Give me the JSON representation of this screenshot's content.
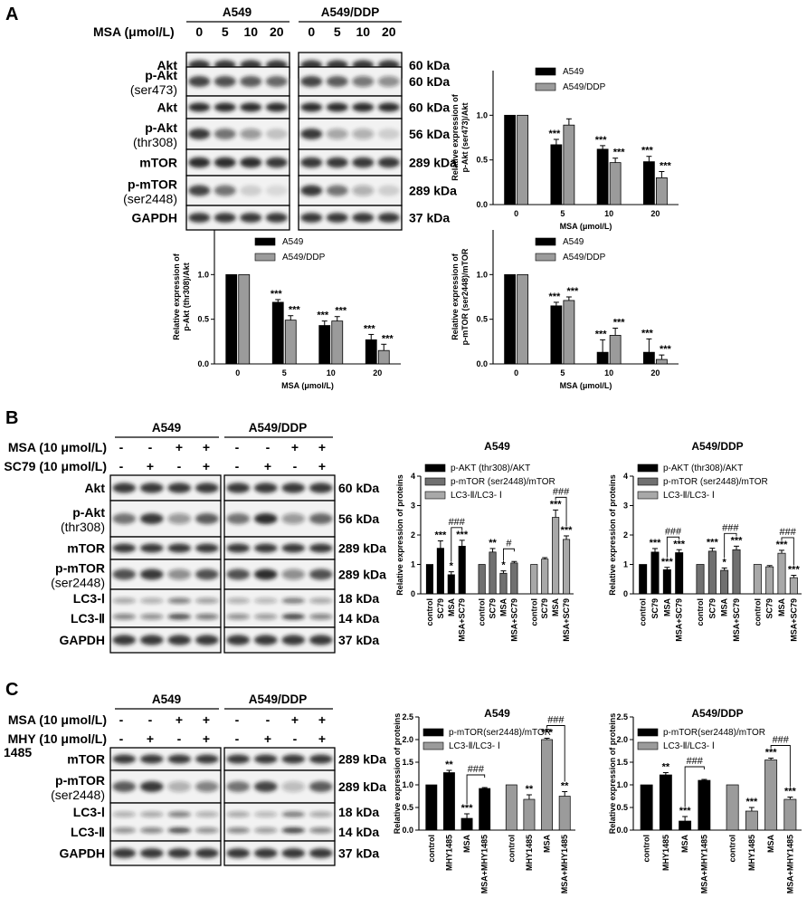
{
  "panelA": {
    "letter": "A",
    "groups": [
      "A549",
      "A549/DDP"
    ],
    "dose_label": "MSA (μmol/L)",
    "doses": [
      "0",
      "5",
      "10",
      "20"
    ],
    "rows": [
      {
        "label": [
          "Akt"
        ],
        "kda": "60 kDa",
        "y1": 58,
        "y2": 86,
        "bands": [
          [
            0.85,
            0.85,
            0.85,
            0.85
          ],
          [
            0.85,
            0.85,
            0.85,
            0.85
          ]
        ]
      },
      {
        "label": [
          "p-Akt",
          "(ser473)"
        ],
        "kda": "60 kDa",
        "y1": 74,
        "y2": 106,
        "bands": [
          [
            0.8,
            0.75,
            0.7,
            0.65
          ],
          [
            0.8,
            0.7,
            0.55,
            0.45
          ]
        ]
      },
      {
        "label": [
          "Akt"
        ],
        "kda": "60 kDa",
        "y1": 106,
        "y2": 131,
        "bands": [
          [
            0.9,
            0.9,
            0.9,
            0.9
          ],
          [
            0.9,
            0.9,
            0.9,
            0.9
          ]
        ]
      },
      {
        "label": [
          "p-Akt",
          "(thr308)"
        ],
        "kda": "56 kDa",
        "y1": 131,
        "y2": 165,
        "bands": [
          [
            0.85,
            0.6,
            0.4,
            0.2
          ],
          [
            0.85,
            0.35,
            0.3,
            0.15
          ]
        ]
      },
      {
        "label": [
          "mTOR"
        ],
        "kda": "289 kDa",
        "y1": 165,
        "y2": 194,
        "bands": [
          [
            0.9,
            0.9,
            0.9,
            0.85
          ],
          [
            0.85,
            0.85,
            0.85,
            0.85
          ]
        ]
      },
      {
        "label": [
          "p-mTOR",
          "(ser2448)"
        ],
        "kda": "289 kDa",
        "y1": 194,
        "y2": 227,
        "bands": [
          [
            0.8,
            0.6,
            0.15,
            0.1
          ],
          [
            0.85,
            0.6,
            0.3,
            0.15
          ]
        ]
      },
      {
        "label": [
          "GAPDH"
        ],
        "kda": "37 kDa",
        "y1": 227,
        "y2": 254,
        "bands": [
          [
            0.85,
            0.85,
            0.85,
            0.85
          ],
          [
            0.85,
            0.85,
            0.85,
            0.85
          ]
        ]
      }
    ]
  },
  "panelB": {
    "letter": "B",
    "groups": [
      "A549",
      "A549/DDP"
    ],
    "treat_rows": [
      {
        "label": "MSA (10 μmol/L)",
        "signs": [
          "-",
          "-",
          "+",
          "+",
          "-",
          "-",
          "+",
          "+"
        ]
      },
      {
        "label": "SC79 (10 μmol/L)",
        "signs": [
          "-",
          "+",
          "-",
          "+",
          "-",
          "+",
          "-",
          "+"
        ]
      }
    ],
    "rows": [
      {
        "label": [
          "Akt"
        ],
        "kda": [
          "60 kDa"
        ],
        "y1": 525,
        "y2": 553,
        "bands": [
          [
            0.85,
            0.85,
            0.85,
            0.85
          ],
          [
            0.85,
            0.85,
            0.85,
            0.85
          ]
        ]
      },
      {
        "label": [
          "p-Akt",
          "(thr308)"
        ],
        "kda": [
          "56 kDa"
        ],
        "y1": 553,
        "y2": 593,
        "bands": [
          [
            0.6,
            0.85,
            0.4,
            0.7
          ],
          [
            0.6,
            0.9,
            0.4,
            0.65
          ]
        ]
      },
      {
        "label": [
          "mTOR"
        ],
        "kda": [
          "289 kDa"
        ],
        "y1": 593,
        "y2": 618,
        "bands": [
          [
            0.85,
            0.85,
            0.85,
            0.85
          ],
          [
            0.85,
            0.85,
            0.85,
            0.85
          ]
        ]
      },
      {
        "label": [
          "p-mTOR",
          "(ser2448)"
        ],
        "kda": [
          "289 kDa"
        ],
        "y1": 618,
        "y2": 651,
        "bands": [
          [
            0.75,
            0.85,
            0.45,
            0.75
          ],
          [
            0.75,
            0.9,
            0.45,
            0.75
          ]
        ]
      },
      {
        "label": [
          "LC3-Ⅰ",
          "LC3-Ⅱ"
        ],
        "kda": [
          "18 kDa",
          "14 kDa"
        ],
        "y1": 651,
        "y2": 693,
        "bands": [
          [
            0.5,
            0.45,
            0.75,
            0.55
          ],
          [
            0.45,
            0.4,
            0.8,
            0.5
          ]
        ]
      },
      {
        "label": [
          "GAPDH"
        ],
        "kda": [
          "37 kDa"
        ],
        "y1": 693,
        "y2": 721,
        "bands": [
          [
            0.85,
            0.85,
            0.85,
            0.85
          ],
          [
            0.85,
            0.85,
            0.85,
            0.85
          ]
        ]
      }
    ]
  },
  "panelC": {
    "letter": "C",
    "groups": [
      "A549",
      "A549/DDP"
    ],
    "treat_rows": [
      {
        "label": "MSA (10 μmol/L)",
        "signs": [
          "-",
          "-",
          "+",
          "+",
          "-",
          "-",
          "+",
          "+"
        ]
      },
      {
        "label": "MHY (10 μmol/L)",
        "signs": [
          "-",
          "+",
          "-",
          "+",
          "-",
          "+",
          "-",
          "+"
        ]
      }
    ],
    "extra_label": "1485",
    "rows": [
      {
        "label": [
          "mTOR"
        ],
        "kda": [
          "289 kDa"
        ],
        "y1": 826,
        "y2": 851,
        "bands": [
          [
            0.85,
            0.85,
            0.85,
            0.85
          ],
          [
            0.85,
            0.85,
            0.85,
            0.85
          ]
        ]
      },
      {
        "label": [
          "p-mTOR",
          "(ser2448)"
        ],
        "kda": [
          "289 kDa"
        ],
        "y1": 851,
        "y2": 887,
        "bands": [
          [
            0.7,
            0.85,
            0.3,
            0.5
          ],
          [
            0.6,
            0.8,
            0.25,
            0.7
          ]
        ]
      },
      {
        "label": [
          "LC3-Ⅰ",
          "LC3-Ⅱ"
        ],
        "kda": [
          "18 kDa",
          "14 kDa"
        ],
        "y1": 887,
        "y2": 929,
        "bands": [
          [
            0.45,
            0.5,
            0.75,
            0.45
          ],
          [
            0.5,
            0.4,
            0.8,
            0.5
          ]
        ]
      },
      {
        "label": [
          "GAPDH"
        ],
        "kda": [
          "37 kDa"
        ],
        "y1": 929,
        "y2": 956,
        "bands": [
          [
            0.85,
            0.85,
            0.85,
            0.85
          ],
          [
            0.85,
            0.85,
            0.85,
            0.85
          ]
        ]
      }
    ]
  },
  "chart_data": [
    {
      "id": "a1",
      "type": "bar",
      "categories": [
        "0",
        "5",
        "10",
        "20"
      ],
      "series": [
        {
          "name": "A549",
          "values": [
            1.0,
            0.67,
            0.62,
            0.48
          ],
          "errors": [
            0,
            0.06,
            0.04,
            0.06
          ],
          "stars": [
            "",
            "***",
            "***",
            "***"
          ]
        },
        {
          "name": "A549/DDP",
          "values": [
            1.0,
            0.89,
            0.47,
            0.3
          ],
          "errors": [
            0,
            0.07,
            0.05,
            0.07
          ],
          "stars": [
            "",
            "",
            "***",
            "***"
          ]
        }
      ],
      "ylabel": [
        "Relative expression of",
        "p-Akt (ser473)/Akt"
      ],
      "xlabel": "MSA (μmol/L)",
      "yticks": [
        "0.0",
        "0.5",
        "1.0"
      ],
      "ylim": [
        0,
        1.5
      ],
      "colors": [
        "#000000",
        "#9b9b9b"
      ],
      "legend": "top"
    },
    {
      "id": "a2",
      "type": "bar",
      "categories": [
        "0",
        "5",
        "10",
        "20"
      ],
      "series": [
        {
          "name": "A549",
          "values": [
            1.0,
            0.69,
            0.43,
            0.27
          ],
          "errors": [
            0,
            0.03,
            0.05,
            0.06
          ],
          "stars": [
            "",
            "***",
            "***",
            "***"
          ]
        },
        {
          "name": "A549/DDP",
          "values": [
            1.0,
            0.49,
            0.48,
            0.15
          ],
          "errors": [
            0,
            0.05,
            0.05,
            0.07
          ],
          "stars": [
            "",
            "***",
            "***",
            "***"
          ]
        }
      ],
      "ylabel": [
        "Relative expression of",
        "p-Akt (thr308)/Akt"
      ],
      "xlabel": "MSA (μmol/L)",
      "yticks": [
        "0.0",
        "0.5",
        "1.0"
      ],
      "ylim": [
        0,
        1.5
      ],
      "colors": [
        "#000000",
        "#9b9b9b"
      ],
      "legend": "top"
    },
    {
      "id": "a3",
      "type": "bar",
      "categories": [
        "0",
        "5",
        "10",
        "20"
      ],
      "series": [
        {
          "name": "A549",
          "values": [
            1.0,
            0.65,
            0.13,
            0.13
          ],
          "errors": [
            0,
            0.04,
            0.14,
            0.15
          ],
          "stars": [
            "",
            "***",
            "***",
            "***"
          ]
        },
        {
          "name": "A549/DDP",
          "values": [
            1.0,
            0.71,
            0.32,
            0.05
          ],
          "errors": [
            0,
            0.04,
            0.08,
            0.05
          ],
          "stars": [
            "",
            "***",
            "***",
            "***"
          ]
        }
      ],
      "ylabel": [
        "Relative expression of",
        "p-mTOR (ser2448)/mTOR"
      ],
      "xlabel": "MSA (μmol/L)",
      "yticks": [
        "0.0",
        "0.5",
        "1.0"
      ],
      "ylim": [
        0,
        1.5
      ],
      "colors": [
        "#000000",
        "#9b9b9b"
      ],
      "legend": "top"
    },
    {
      "id": "b1",
      "type": "bar",
      "title": "A549",
      "categories": [
        "control",
        "SC79",
        "MSA",
        "MSA+SC79"
      ],
      "groups": [
        {
          "name": "p-AKT (thr308)/AKT",
          "color": "#000000",
          "values": [
            1.0,
            1.55,
            0.65,
            1.62
          ],
          "errors": [
            0,
            0.25,
            0.1,
            0.2
          ],
          "stars": [
            "",
            "***",
            "*",
            "***"
          ],
          "bracket": "###"
        },
        {
          "name": "p-mTOR (ser2448)/mTOR",
          "color": "#707070",
          "values": [
            1.0,
            1.42,
            0.7,
            1.05
          ],
          "errors": [
            0,
            0.12,
            0.08,
            0.05
          ],
          "stars": [
            "",
            "**",
            "*",
            ""
          ],
          "bracket": "#"
        },
        {
          "name": "LC3-Ⅱ/LC3- Ⅰ",
          "color": "#a8a8a8",
          "values": [
            1.0,
            1.18,
            2.6,
            1.85
          ],
          "errors": [
            0,
            0.05,
            0.25,
            0.12
          ],
          "stars": [
            "",
            "",
            "***",
            "***"
          ],
          "bracket": "###"
        }
      ],
      "ylabel": "Relative expression of proteins",
      "yticks": [
        "0",
        "1",
        "2",
        "3",
        "4"
      ],
      "ylim": [
        0,
        4
      ],
      "legend": "top"
    },
    {
      "id": "b2",
      "type": "bar",
      "title": "A549/DDP",
      "categories": [
        "control",
        "SC79",
        "MSA",
        "MSA+SC79"
      ],
      "groups": [
        {
          "name": "p-AKT (thr308)/AKT",
          "color": "#000000",
          "values": [
            1.0,
            1.42,
            0.82,
            1.4
          ],
          "errors": [
            0,
            0.12,
            0.08,
            0.1
          ],
          "stars": [
            "",
            "***",
            "***",
            "***"
          ],
          "bracket": "###"
        },
        {
          "name": "p-mTOR (ser2448)/mTOR",
          "color": "#707070",
          "values": [
            1.0,
            1.45,
            0.8,
            1.5
          ],
          "errors": [
            0,
            0.1,
            0.08,
            0.12
          ],
          "stars": [
            "",
            "***",
            "*",
            "***"
          ],
          "bracket": "###"
        },
        {
          "name": "LC3-Ⅱ/LC3- Ⅰ",
          "color": "#a8a8a8",
          "values": [
            1.0,
            0.92,
            1.38,
            0.55
          ],
          "errors": [
            0,
            0.04,
            0.1,
            0.08
          ],
          "stars": [
            "",
            "",
            "***",
            "***"
          ],
          "bracket": "###"
        }
      ],
      "ylabel": "Relative expression of proteins",
      "yticks": [
        "0",
        "1",
        "2",
        "3",
        "4"
      ],
      "ylim": [
        0,
        4
      ],
      "legend": "top"
    },
    {
      "id": "c1",
      "type": "bar",
      "title": "A549",
      "categories": [
        "control",
        "MHY1485",
        "MSA",
        "MSA+MHY1485"
      ],
      "groups": [
        {
          "name": "p-mTOR(ser2448)/mTOR",
          "color": "#000000",
          "values": [
            1.0,
            1.27,
            0.26,
            0.92
          ],
          "errors": [
            0,
            0.05,
            0.1,
            0.02
          ],
          "stars": [
            "",
            "**",
            "***",
            ""
          ],
          "bracket": "###"
        },
        {
          "name": "LC3-Ⅱ/LC3- Ⅰ",
          "color": "#9b9b9b",
          "values": [
            1.0,
            0.68,
            2.0,
            0.75
          ],
          "errors": [
            0,
            0.1,
            0.03,
            0.1
          ],
          "stars": [
            "",
            "**",
            "***",
            "**"
          ],
          "bracket": "###"
        }
      ],
      "ylabel": "Relative expression of proteins",
      "yticks": [
        "0.0",
        "0.5",
        "1.0",
        "1.5",
        "2.0",
        "2.5"
      ],
      "ylim": [
        0,
        2.5
      ],
      "legend": "top"
    },
    {
      "id": "c2",
      "type": "bar",
      "title": "A549/DDP",
      "categories": [
        "control",
        "MHY1485",
        "MSA",
        "MSA+MHY1485"
      ],
      "groups": [
        {
          "name": "p-mTOR(ser2448)/mTOR",
          "color": "#000000",
          "values": [
            1.0,
            1.22,
            0.2,
            1.1
          ],
          "errors": [
            0,
            0.05,
            0.1,
            0.02
          ],
          "stars": [
            "",
            "**",
            "***",
            ""
          ],
          "bracket": "###"
        },
        {
          "name": "LC3-Ⅱ/LC3- Ⅰ",
          "color": "#9b9b9b",
          "values": [
            1.0,
            0.42,
            1.55,
            0.68
          ],
          "errors": [
            0,
            0.08,
            0.04,
            0.05
          ],
          "stars": [
            "",
            "***",
            "***",
            "***"
          ],
          "bracket": "###"
        }
      ],
      "ylabel": "Relative expression of proteins",
      "yticks": [
        "0.0",
        "0.5",
        "1.0",
        "1.5",
        "2.0",
        "2.5"
      ],
      "ylim": [
        0,
        2.5
      ],
      "legend": "top"
    }
  ]
}
